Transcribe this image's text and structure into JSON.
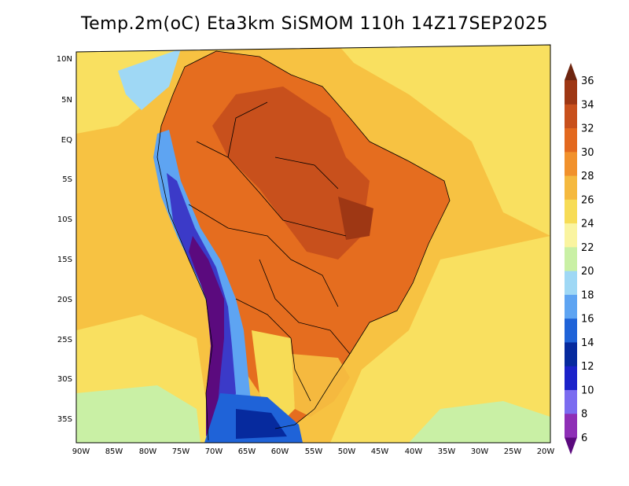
{
  "title": "Temp.2m(oC) Eta3km SiSMOM 110h 14Z17SEP2025",
  "map": {
    "lat_labels": [
      "10N",
      "5N",
      "EQ",
      "5S",
      "10S",
      "15S",
      "20S",
      "25S",
      "30S",
      "35S"
    ],
    "lon_labels": [
      "90W",
      "85W",
      "80W",
      "75W",
      "70W",
      "65W",
      "60W",
      "55W",
      "50W",
      "45W",
      "40W",
      "35W",
      "30W",
      "25W",
      "20W"
    ],
    "colorbar": {
      "labels": [
        "6",
        "8",
        "10",
        "12",
        "14",
        "16",
        "18",
        "20",
        "22",
        "24",
        "26",
        "28",
        "30",
        "32",
        "34",
        "36"
      ],
      "colors": [
        "#5b0a7e",
        "#8e2fb6",
        "#7b6cf0",
        "#1b22c9",
        "#062a9e",
        "#1f63d8",
        "#5ea4f2",
        "#9fd8f5",
        "#c9f0a5",
        "#faf4a0",
        "#f7dc56",
        "#f5b93f",
        "#f1912c",
        "#e3691f",
        "#c8501c",
        "#9e3714",
        "#6e2510"
      ]
    },
    "colors": {
      "ocean_warm": "#f7c242",
      "ocean_yellow": "#f9e060",
      "land_hot": "#e56d1f",
      "land_very_hot": "#bd4f1c",
      "andes_cold": "#3b3ac8",
      "border": "#000000"
    }
  }
}
